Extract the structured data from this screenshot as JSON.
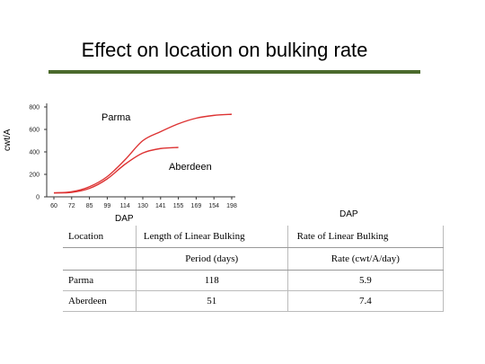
{
  "title": "Effect on location on bulking rate",
  "chart_data": {
    "type": "line",
    "title": "",
    "xlabel": "DAP",
    "ylabel": "cwt/A",
    "categories": [
      "60",
      "72",
      "85",
      "99",
      "114",
      "130",
      "141",
      "155",
      "169",
      "154",
      "198"
    ],
    "ylim": [
      0,
      800
    ],
    "yticks": [
      "0",
      "200",
      "400",
      "600",
      "800"
    ],
    "grid": false,
    "series": [
      {
        "name": "Parma",
        "color": "#dd3333",
        "values": [
          35,
          45,
          90,
          180,
          330,
          500,
          580,
          650,
          700,
          725,
          735
        ]
      },
      {
        "name": "Aberdeen",
        "color": "#dd3333",
        "values": [
          35,
          40,
          75,
          160,
          290,
          390,
          430,
          440,
          null,
          null,
          null
        ]
      }
    ]
  },
  "dap_right": "DAP",
  "table": {
    "header1": [
      "Location",
      "Length of Linear Bulking",
      "Rate of Linear Bulking"
    ],
    "header2": [
      "",
      "Period (days)",
      "Rate (cwt/A/day)"
    ],
    "rows": [
      [
        "Parma",
        "118",
        "5.9"
      ],
      [
        "Aberdeen",
        "51",
        "7.4"
      ]
    ]
  }
}
